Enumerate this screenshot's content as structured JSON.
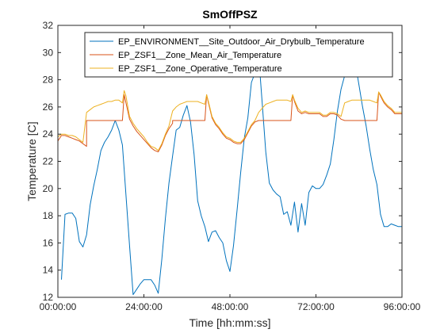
{
  "chart_data": {
    "type": "line",
    "title": "SmOffPSZ",
    "xlabel": "Time [hh:mm:ss]",
    "ylabel": "Temperature [C]",
    "xlim": [
      0,
      96
    ],
    "ylim": [
      12,
      32
    ],
    "xticks": [
      0,
      24,
      48,
      72,
      96
    ],
    "xtick_labels": [
      "00:00:00",
      "24:00:00",
      "48:00:00",
      "72:00:00",
      "96:00:00"
    ],
    "yticks": [
      12,
      14,
      16,
      18,
      20,
      22,
      24,
      26,
      28,
      30,
      32
    ],
    "ytick_labels": [
      "12",
      "14",
      "16",
      "18",
      "20",
      "22",
      "24",
      "26",
      "28",
      "30",
      "32"
    ],
    "grid": false,
    "legend_location": "top-right",
    "series": [
      {
        "name": "EP_ENVIRONMENT__Site_Outdoor_Air_Drybulb_Temperature",
        "color": "#0072BD",
        "x": [
          1,
          2,
          3,
          4,
          5,
          6,
          7,
          8,
          9,
          10,
          11,
          12,
          13,
          14,
          15,
          16,
          17,
          18,
          19,
          20,
          21,
          22,
          23,
          24,
          25,
          26,
          27,
          28,
          29,
          30,
          31,
          32,
          33,
          34,
          35,
          36,
          37,
          38,
          39,
          40,
          41,
          42,
          43,
          44,
          45,
          46,
          47,
          48,
          49,
          50,
          51,
          52,
          53,
          54,
          55,
          56,
          57,
          58,
          59,
          60,
          61,
          62,
          63,
          64,
          65,
          66,
          67,
          68,
          69,
          70,
          71,
          72,
          73,
          74,
          75,
          76,
          77,
          78,
          79,
          80,
          81,
          82,
          83,
          84,
          85,
          86,
          87,
          88,
          89,
          90,
          91,
          92,
          93,
          94,
          95,
          96
        ],
        "y": [
          13.3,
          18.1,
          18.2,
          18.2,
          17.8,
          16.1,
          15.7,
          16.6,
          18.8,
          20.2,
          21.4,
          22.8,
          23.4,
          23.8,
          24.3,
          25.0,
          24.3,
          23.2,
          19.5,
          15.8,
          12.2,
          12.6,
          13.0,
          13.3,
          13.3,
          13.3,
          12.9,
          12.3,
          14.8,
          17.8,
          20.4,
          22.4,
          24.3,
          24.5,
          25.4,
          26.1,
          24.9,
          22.5,
          19.1,
          18.0,
          17.2,
          16.1,
          16.8,
          16.9,
          16.4,
          16.0,
          14.7,
          13.9,
          15.8,
          18.4,
          21.2,
          23.7,
          25.2,
          27.8,
          28.5,
          29.8,
          26.3,
          22.7,
          20.4,
          19.9,
          19.6,
          19.4,
          18.1,
          18.3,
          17.3,
          19.0,
          16.8,
          18.9,
          17.3,
          19.7,
          20.2,
          20.0,
          20.0,
          20.3,
          21.0,
          21.8,
          23.6,
          25.7,
          27.3,
          28.3,
          29.5,
          30.8,
          29.2,
          27.6,
          26.0,
          24.6,
          22.9,
          21.4,
          20.3,
          18.1,
          17.2,
          17.2,
          17.4,
          17.3,
          17.2,
          17.2
        ]
      },
      {
        "name": "EP_ZSF1__Zone_Mean_Air_Temperature",
        "color": "#D95319",
        "x": [
          0,
          1,
          2,
          3,
          4,
          5,
          6,
          7,
          8,
          8.01,
          9,
          10,
          11,
          12,
          13,
          14,
          15,
          16,
          17,
          18,
          18.5,
          19,
          20,
          21,
          22,
          23,
          24,
          25,
          26,
          27,
          28,
          29,
          30,
          31,
          32,
          32.01,
          33,
          34,
          35,
          36,
          37,
          38,
          39,
          40,
          41,
          41.5,
          42,
          43,
          44,
          45,
          46,
          47,
          48,
          49,
          50,
          51,
          52,
          53,
          54,
          55,
          56,
          56.01,
          57,
          58,
          59,
          60,
          61,
          62,
          63,
          64,
          65,
          65.5,
          66,
          67,
          68,
          69,
          70,
          71,
          72,
          73,
          74,
          75,
          76,
          77,
          78,
          79,
          80,
          80.01,
          81,
          82,
          83,
          84,
          85,
          86,
          87,
          88,
          89,
          89.5,
          90,
          91,
          92,
          93,
          94,
          95,
          96
        ],
        "y": [
          23.5,
          23.9,
          23.9,
          23.8,
          23.7,
          23.6,
          23.5,
          23.3,
          23.1,
          25.0,
          25.0,
          25.0,
          25.0,
          25.0,
          25.0,
          25.0,
          25.0,
          25.0,
          25.0,
          25.0,
          26.9,
          26.3,
          25.1,
          24.6,
          24.2,
          23.9,
          23.6,
          23.3,
          23.0,
          22.8,
          22.7,
          23.2,
          23.9,
          24.4,
          24.8,
          25.0,
          25.0,
          25.0,
          25.0,
          25.0,
          25.0,
          25.0,
          25.0,
          25.0,
          25.0,
          26.9,
          26.3,
          25.2,
          24.7,
          24.4,
          24.0,
          23.7,
          23.6,
          23.4,
          23.3,
          23.3,
          23.6,
          24.1,
          24.6,
          24.9,
          25.0,
          25.0,
          25.0,
          25.0,
          25.0,
          25.0,
          25.0,
          25.0,
          25.0,
          25.0,
          25.0,
          26.9,
          26.4,
          25.7,
          25.5,
          25.6,
          25.5,
          25.5,
          25.5,
          25.5,
          25.3,
          25.3,
          25.5,
          25.5,
          25.4,
          25.1,
          25.0,
          25.0,
          25.0,
          25.0,
          25.0,
          25.0,
          25.0,
          25.0,
          25.0,
          25.0,
          25.0,
          27.1,
          26.8,
          26.3,
          26.0,
          25.8,
          25.5,
          25.5,
          25.5
        ]
      },
      {
        "name": "EP_ZSF1__Zone_Operative_Temperature",
        "color": "#EDB120",
        "x": [
          0,
          1,
          2,
          3,
          4,
          5,
          6,
          7,
          8,
          9,
          10,
          11,
          12,
          13,
          14,
          15,
          16,
          17,
          18,
          18.5,
          19,
          20,
          21,
          22,
          23,
          24,
          25,
          26,
          27,
          28,
          29,
          30,
          31,
          32,
          33,
          34,
          35,
          36,
          37,
          38,
          39,
          40,
          41,
          41.5,
          42,
          43,
          44,
          45,
          46,
          47,
          48,
          49,
          50,
          51,
          52,
          53,
          54,
          55,
          56,
          57,
          58,
          59,
          60,
          61,
          62,
          63,
          64,
          65,
          65.5,
          66,
          67,
          68,
          69,
          70,
          71,
          72,
          73,
          74,
          75,
          76,
          77,
          78,
          79,
          80,
          81,
          82,
          83,
          84,
          85,
          86,
          87,
          88,
          89,
          89.5,
          90,
          91,
          92,
          93,
          94,
          95,
          96
        ],
        "y": [
          23.8,
          24.0,
          24.0,
          23.9,
          23.9,
          23.8,
          23.6,
          23.4,
          25.6,
          25.8,
          26.0,
          26.1,
          26.2,
          26.3,
          26.4,
          26.4,
          26.5,
          26.5,
          26.3,
          27.2,
          26.8,
          25.3,
          24.8,
          24.4,
          24.1,
          23.8,
          23.4,
          23.1,
          23.0,
          22.8,
          23.3,
          24.0,
          24.6,
          25.7,
          26.0,
          26.2,
          26.3,
          26.4,
          26.4,
          26.4,
          26.4,
          26.3,
          26.2,
          26.9,
          26.4,
          25.3,
          24.8,
          24.5,
          24.1,
          23.8,
          23.7,
          23.5,
          23.4,
          23.4,
          23.7,
          24.2,
          24.7,
          25.0,
          25.6,
          25.9,
          26.2,
          26.3,
          26.4,
          26.5,
          26.5,
          26.5,
          26.5,
          26.4,
          26.9,
          26.5,
          25.9,
          25.6,
          25.7,
          25.6,
          25.6,
          25.6,
          25.6,
          25.4,
          25.4,
          25.6,
          25.6,
          25.5,
          25.3,
          26.3,
          26.4,
          26.5,
          26.5,
          26.5,
          26.5,
          26.5,
          26.5,
          26.4,
          26.3,
          27.1,
          26.9,
          26.4,
          26.1,
          25.9,
          25.6,
          25.6,
          25.6
        ]
      }
    ]
  }
}
